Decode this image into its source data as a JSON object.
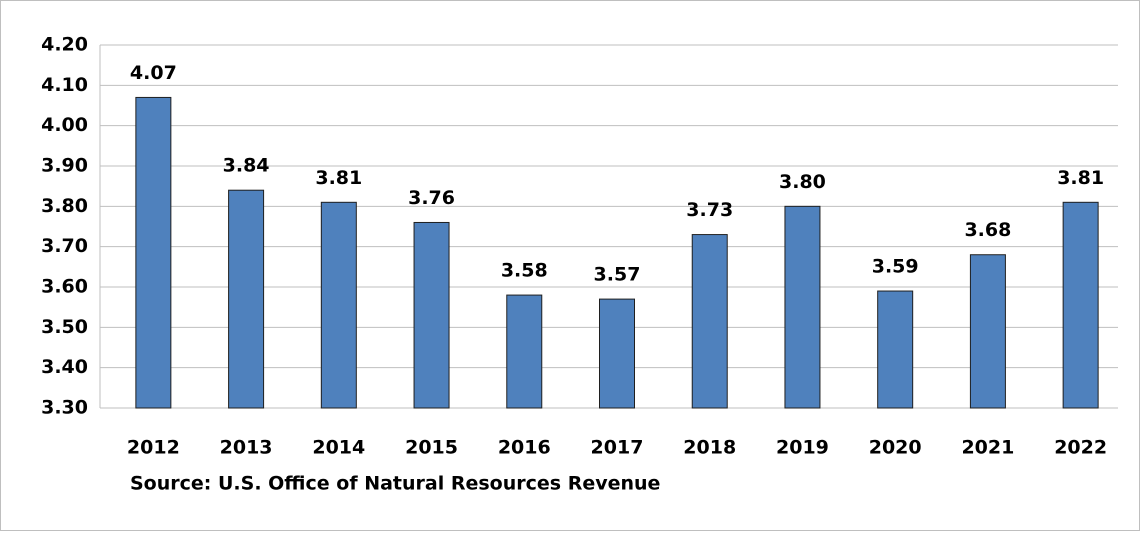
{
  "chart_data": {
    "type": "bar",
    "source": "Source: U.S. Office of Natural Resources Revenue",
    "categories": [
      "2012",
      "2013",
      "2014",
      "2015",
      "2016",
      "2017",
      "2018",
      "2019",
      "2020",
      "2021",
      "2022"
    ],
    "values": [
      4.07,
      3.84,
      3.81,
      3.76,
      3.58,
      3.57,
      3.73,
      3.8,
      3.59,
      3.68,
      3.81
    ],
    "value_labels": [
      "4.07",
      "3.84",
      "3.81",
      "3.76",
      "3.58",
      "3.57",
      "3.73",
      "3.80",
      "3.59",
      "3.68",
      "3.81"
    ],
    "color": "#4f81bd",
    "ylim": [
      3.3,
      4.2
    ],
    "yticks": [
      {
        "value": 3.3,
        "label": "3.30"
      },
      {
        "value": 3.4,
        "label": "3.40"
      },
      {
        "value": 3.5,
        "label": "3.50"
      },
      {
        "value": 3.6,
        "label": "3.60"
      },
      {
        "value": 3.7,
        "label": "3.70"
      },
      {
        "value": 3.8,
        "label": "3.80"
      },
      {
        "value": 3.9,
        "label": "3.90"
      },
      {
        "value": 4.0,
        "label": "4.00"
      },
      {
        "value": 4.1,
        "label": "4.10"
      },
      {
        "value": 4.2,
        "label": "4.20"
      }
    ],
    "grid": true
  }
}
